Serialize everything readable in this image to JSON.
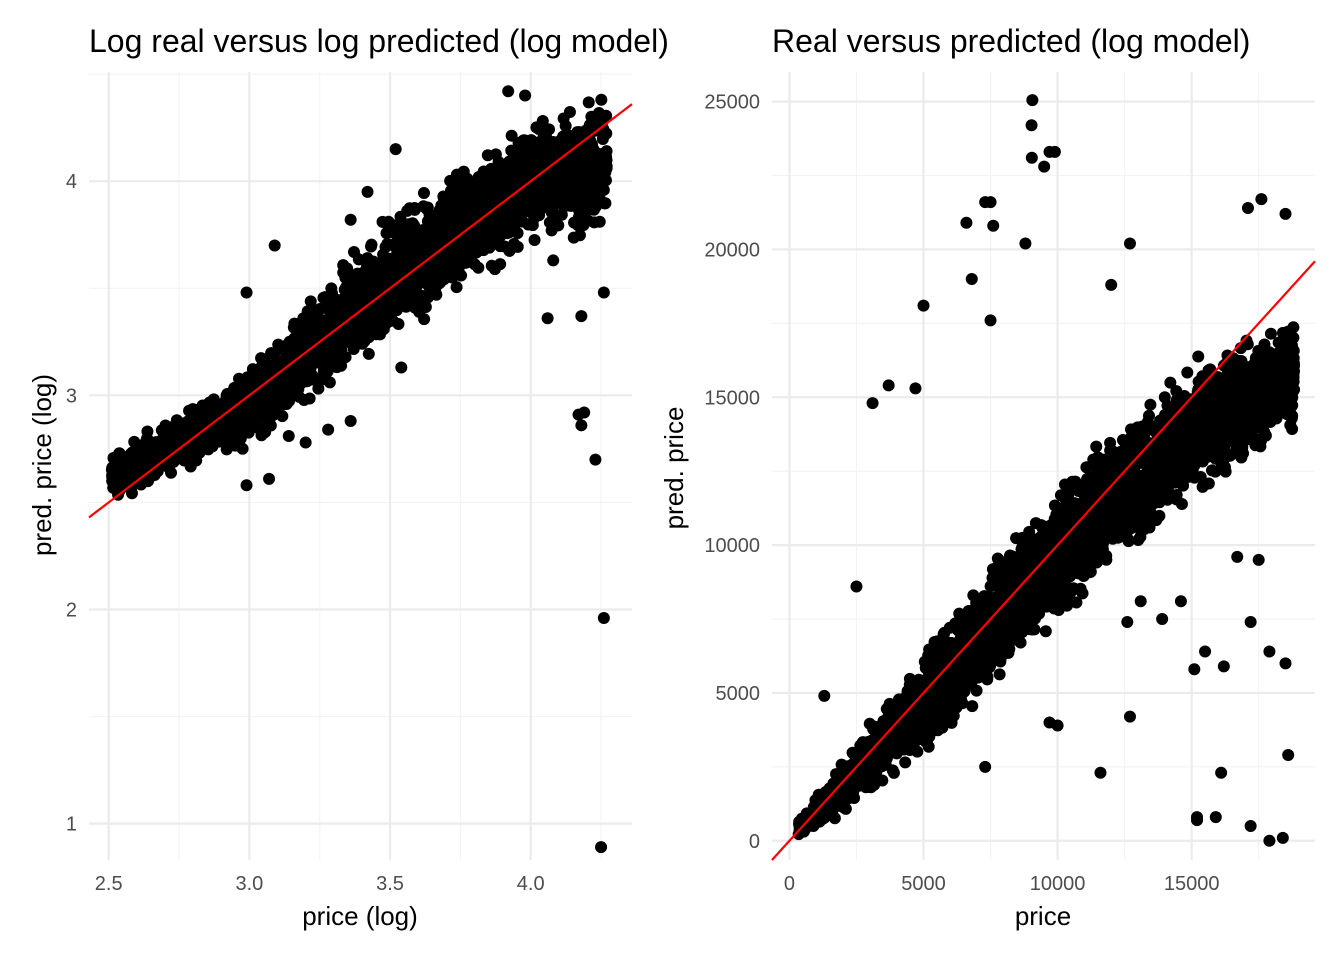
{
  "chart_data": [
    {
      "type": "scatter",
      "title": "Log real versus log predicted (log model)",
      "xlabel": "price (log)",
      "ylabel": "pred. price (log)",
      "xlim": [
        2.43,
        4.36
      ],
      "ylim": [
        0.83,
        4.51
      ],
      "x_ticks": [
        {
          "value": 2.5,
          "label": "2.5"
        },
        {
          "value": 3.0,
          "label": "3.0"
        },
        {
          "value": 3.5,
          "label": "3.5"
        },
        {
          "value": 4.0,
          "label": "4.0"
        }
      ],
      "y_ticks": [
        {
          "value": 1,
          "label": "1"
        },
        {
          "value": 2,
          "label": "2"
        },
        {
          "value": 3,
          "label": "3"
        },
        {
          "value": 4,
          "label": "4"
        }
      ],
      "grid": true,
      "point_color": "#000000",
      "reference_line": {
        "intercept": 0.0,
        "slope": 1.0,
        "color": "#ff0000"
      },
      "cloud": {
        "x_range": [
          2.51,
          4.27
        ],
        "centerline": [
          [
            2.51,
            2.62
          ],
          [
            3.0,
            2.95
          ],
          [
            3.5,
            3.55
          ],
          [
            4.0,
            4.0
          ],
          [
            4.27,
            4.08
          ]
        ],
        "spread": [
          [
            2.51,
            0.1
          ],
          [
            3.0,
            0.15
          ],
          [
            3.5,
            0.25
          ],
          [
            4.0,
            0.22
          ],
          [
            4.27,
            0.28
          ]
        ],
        "count": 2600
      },
      "points": [
        {
          "x": 2.99,
          "y": 2.58
        },
        {
          "x": 3.07,
          "y": 2.61
        },
        {
          "x": 3.09,
          "y": 3.7
        },
        {
          "x": 2.99,
          "y": 3.48
        },
        {
          "x": 3.14,
          "y": 2.81
        },
        {
          "x": 3.2,
          "y": 2.78
        },
        {
          "x": 3.28,
          "y": 2.84
        },
        {
          "x": 3.36,
          "y": 2.88
        },
        {
          "x": 3.54,
          "y": 3.13
        },
        {
          "x": 3.52,
          "y": 4.15
        },
        {
          "x": 3.92,
          "y": 4.42
        },
        {
          "x": 3.98,
          "y": 4.4
        },
        {
          "x": 4.06,
          "y": 3.36
        },
        {
          "x": 4.08,
          "y": 3.63
        },
        {
          "x": 4.18,
          "y": 3.37
        },
        {
          "x": 4.26,
          "y": 3.48
        },
        {
          "x": 4.18,
          "y": 2.86
        },
        {
          "x": 4.17,
          "y": 2.91
        },
        {
          "x": 4.19,
          "y": 2.92
        },
        {
          "x": 4.23,
          "y": 2.7
        },
        {
          "x": 4.26,
          "y": 1.96
        },
        {
          "x": 4.25,
          "y": 0.89
        },
        {
          "x": 3.36,
          "y": 3.82
        },
        {
          "x": 3.42,
          "y": 3.95
        }
      ]
    },
    {
      "type": "scatter",
      "title": "Real versus predicted (log model)",
      "xlabel": "price",
      "ylabel": "pred. price",
      "xlim": [
        -650,
        19600
      ],
      "ylim": [
        -650,
        26000
      ],
      "x_ticks": [
        {
          "value": 0,
          "label": "0"
        },
        {
          "value": 5000,
          "label": "5000"
        },
        {
          "value": 10000,
          "label": "10000"
        },
        {
          "value": 15000,
          "label": "15000"
        }
      ],
      "y_ticks": [
        {
          "value": 0,
          "label": "0"
        },
        {
          "value": 5000,
          "label": "5000"
        },
        {
          "value": 10000,
          "label": "10000"
        },
        {
          "value": 15000,
          "label": "15000"
        },
        {
          "value": 20000,
          "label": "20000"
        },
        {
          "value": 25000,
          "label": "25000"
        }
      ],
      "grid": true,
      "point_color": "#000000",
      "reference_line": {
        "intercept": 0,
        "slope": 1.0,
        "color": "#ff0000"
      },
      "cloud": {
        "x_range": [
          330,
          18820
        ],
        "centerline": [
          [
            330,
            400
          ],
          [
            2000,
            1800
          ],
          [
            5000,
            4700
          ],
          [
            10000,
            9800
          ],
          [
            15000,
            13800
          ],
          [
            18800,
            15800
          ]
        ],
        "spread": [
          [
            330,
            200
          ],
          [
            2000,
            700
          ],
          [
            5000,
            1400
          ],
          [
            10000,
            1900
          ],
          [
            15000,
            1800
          ],
          [
            18800,
            1600
          ]
        ],
        "count": 3600
      },
      "points": [
        {
          "x": 9060,
          "y": 25050
        },
        {
          "x": 9030,
          "y": 24200
        },
        {
          "x": 9040,
          "y": 23100
        },
        {
          "x": 9500,
          "y": 22800
        },
        {
          "x": 9700,
          "y": 23300
        },
        {
          "x": 9900,
          "y": 23300
        },
        {
          "x": 7300,
          "y": 21600
        },
        {
          "x": 7500,
          "y": 21600
        },
        {
          "x": 7600,
          "y": 20800
        },
        {
          "x": 6600,
          "y": 20900
        },
        {
          "x": 8800,
          "y": 20200
        },
        {
          "x": 12000,
          "y": 18800
        },
        {
          "x": 12700,
          "y": 20200
        },
        {
          "x": 17100,
          "y": 21400
        },
        {
          "x": 17600,
          "y": 21700
        },
        {
          "x": 18500,
          "y": 21200
        },
        {
          "x": 5000,
          "y": 18100
        },
        {
          "x": 6800,
          "y": 19000
        },
        {
          "x": 7500,
          "y": 17600
        },
        {
          "x": 3700,
          "y": 15400
        },
        {
          "x": 3100,
          "y": 14800
        },
        {
          "x": 4700,
          "y": 15300
        },
        {
          "x": 2500,
          "y": 8600
        },
        {
          "x": 1300,
          "y": 4900
        },
        {
          "x": 7300,
          "y": 2500
        },
        {
          "x": 9700,
          "y": 4000
        },
        {
          "x": 10000,
          "y": 3900
        },
        {
          "x": 11600,
          "y": 2300
        },
        {
          "x": 12700,
          "y": 4200
        },
        {
          "x": 15200,
          "y": 800
        },
        {
          "x": 15200,
          "y": 700
        },
        {
          "x": 15900,
          "y": 800
        },
        {
          "x": 17200,
          "y": 500
        },
        {
          "x": 17900,
          "y": 0
        },
        {
          "x": 18400,
          "y": 100
        },
        {
          "x": 18600,
          "y": 2900
        },
        {
          "x": 16100,
          "y": 2300
        },
        {
          "x": 18500,
          "y": 6000
        },
        {
          "x": 17900,
          "y": 6400
        },
        {
          "x": 17200,
          "y": 7400
        },
        {
          "x": 16700,
          "y": 9600
        },
        {
          "x": 17500,
          "y": 9500
        },
        {
          "x": 15100,
          "y": 5800
        },
        {
          "x": 16200,
          "y": 5900
        },
        {
          "x": 15500,
          "y": 6400
        },
        {
          "x": 13900,
          "y": 7500
        },
        {
          "x": 14600,
          "y": 8100
        },
        {
          "x": 12600,
          "y": 7400
        },
        {
          "x": 13100,
          "y": 8100
        }
      ]
    }
  ]
}
